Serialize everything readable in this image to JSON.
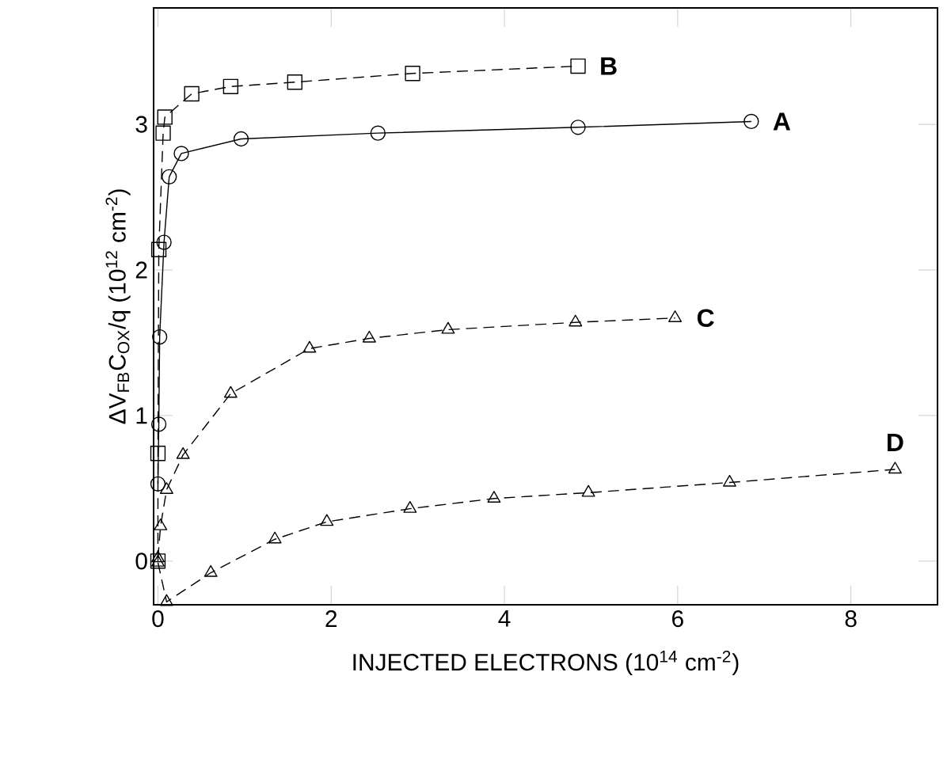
{
  "chart_data": {
    "type": "line",
    "xlabel": "INJECTED ELECTRONS (10$^{14}$ cm$^{-2}$)",
    "ylabel": "ΔV$_{FB}$C$_{OX}$/q (10$^{12}$ cm$^{-2}$)",
    "xlim": [
      -0.05,
      9.0
    ],
    "ylim": [
      -0.3,
      3.8
    ],
    "xticks": [
      0,
      2,
      4,
      6,
      8
    ],
    "yticks": [
      0,
      1,
      2,
      3
    ],
    "grid": false,
    "legend": false,
    "series": [
      {
        "name": "A",
        "color": "#000000",
        "marker": "circle",
        "line_style": "solid",
        "x": [
          0,
          0.01,
          0.02,
          0.07,
          0.13,
          0.27,
          0.96,
          2.54,
          4.85,
          6.85
        ],
        "values": [
          0.53,
          0.94,
          1.54,
          2.19,
          2.64,
          2.8,
          2.9,
          2.94,
          2.98,
          3.02
        ]
      },
      {
        "name": "B",
        "color": "#000000",
        "marker": "square",
        "line_style": "dashed",
        "x": [
          0,
          0,
          0.01,
          0.06,
          0.08,
          0.39,
          0.84,
          1.58,
          2.94,
          4.85
        ],
        "values": [
          0,
          0.74,
          2.14,
          2.94,
          3.05,
          3.21,
          3.26,
          3.29,
          3.35,
          3.4
        ]
      },
      {
        "name": "C",
        "color": "#000000",
        "marker": "triangle",
        "line_style": "dashed",
        "x": [
          0,
          0.03,
          0.1,
          0.29,
          0.84,
          1.75,
          2.44,
          3.35,
          4.82,
          5.97
        ],
        "values": [
          0.02,
          0.24,
          0.49,
          0.73,
          1.15,
          1.46,
          1.53,
          1.59,
          1.64,
          1.67
        ]
      },
      {
        "name": "D",
        "color": "#000000",
        "marker": "triangle-down",
        "line_style": "dashed",
        "x": [
          0,
          0.1,
          0.61,
          1.35,
          1.95,
          2.91,
          3.88,
          4.97,
          6.6,
          8.51
        ],
        "values": [
          -0.01,
          -0.28,
          -0.08,
          0.15,
          0.27,
          0.36,
          0.43,
          0.47,
          0.54,
          0.63
        ]
      }
    ]
  }
}
